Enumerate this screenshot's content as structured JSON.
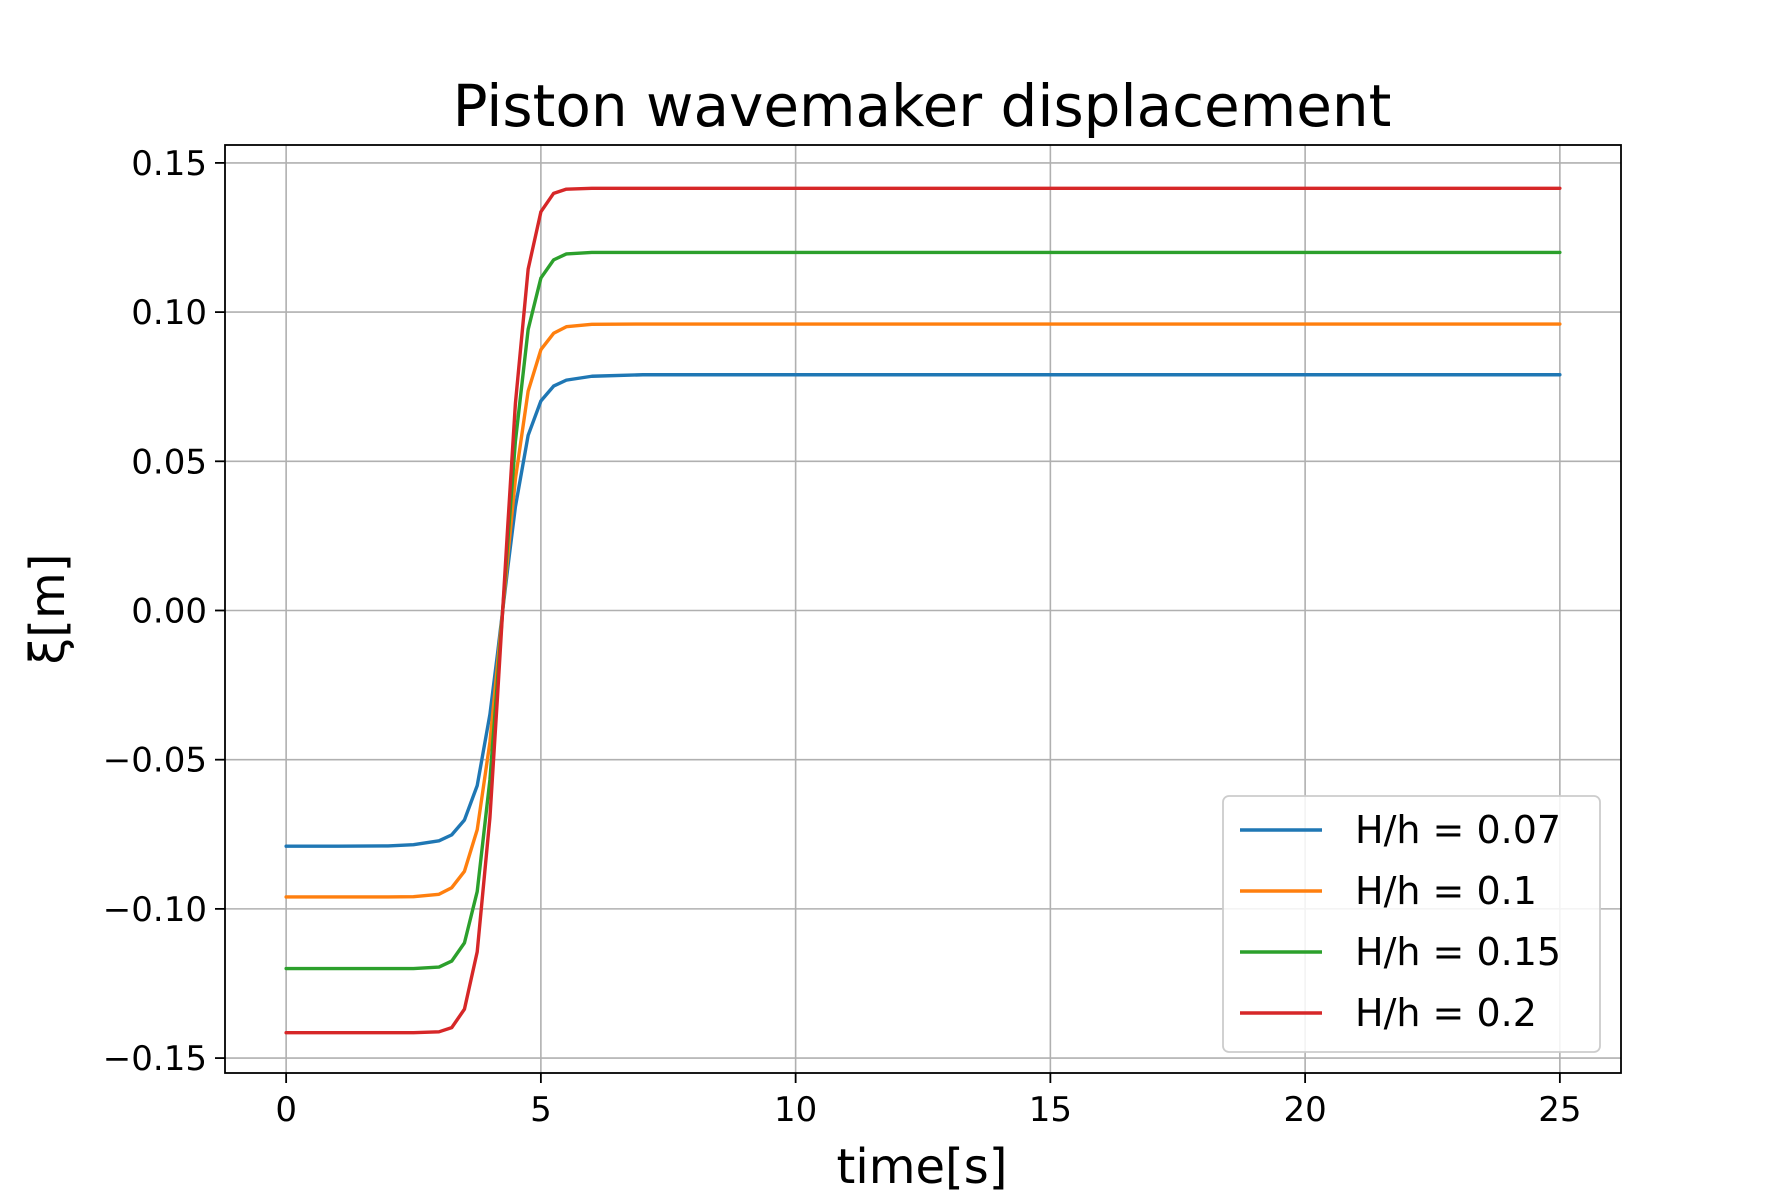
{
  "chart_data": {
    "type": "line",
    "title": "Piston wavemaker displacement",
    "xlabel": "time[s]",
    "ylabel": "ξ[m]",
    "xlim": [
      -1.2,
      26.2
    ],
    "ylim": [
      -0.155,
      0.156
    ],
    "xticks": [
      0,
      5,
      10,
      15,
      20,
      25
    ],
    "xtick_labels": [
      "0",
      "5",
      "10",
      "15",
      "20",
      "25"
    ],
    "yticks": [
      -0.15,
      -0.1,
      -0.05,
      0.0,
      0.05,
      0.1,
      0.15
    ],
    "ytick_labels": [
      "−0.15",
      "−0.10",
      "−0.05",
      "0.00",
      "0.05",
      "0.10",
      "0.15"
    ],
    "grid": true,
    "legend_position": "lower-right",
    "x": [
      0,
      1,
      2,
      2.5,
      3,
      3.25,
      3.5,
      3.75,
      4,
      4.15,
      4.25,
      4.35,
      4.5,
      4.75,
      5,
      5.25,
      5.5,
      6,
      7,
      10,
      15,
      20,
      25
    ],
    "series": [
      {
        "name": "H/h = 0.07",
        "color": "#1f77b4",
        "values": [
          -0.079,
          -0.079,
          -0.0789,
          -0.0785,
          -0.0772,
          -0.0752,
          -0.0702,
          -0.0587,
          -0.0348,
          -0.0143,
          0.0,
          0.0143,
          0.0348,
          0.0587,
          0.0702,
          0.0752,
          0.0772,
          0.0785,
          0.079,
          0.079,
          0.079,
          0.079,
          0.079
        ]
      },
      {
        "name": "H/h = 0.1",
        "color": "#ff7f0e",
        "values": [
          -0.096,
          -0.096,
          -0.096,
          -0.0959,
          -0.0951,
          -0.0929,
          -0.0874,
          -0.0735,
          -0.0441,
          -0.018,
          0.0,
          0.018,
          0.0441,
          0.0735,
          0.0874,
          0.0929,
          0.0951,
          0.0959,
          0.096,
          0.096,
          0.096,
          0.096,
          0.096
        ]
      },
      {
        "name": "H/h = 0.15",
        "color": "#2ca02c",
        "values": [
          -0.12,
          -0.12,
          -0.12,
          -0.12,
          -0.1195,
          -0.1175,
          -0.1114,
          -0.0942,
          -0.0567,
          -0.0231,
          0.0,
          0.0231,
          0.0567,
          0.0942,
          0.1114,
          0.1175,
          0.1195,
          0.12,
          0.12,
          0.12,
          0.12,
          0.12,
          0.12
        ]
      },
      {
        "name": "H/h = 0.2",
        "color": "#d62728",
        "values": [
          -0.1415,
          -0.1415,
          -0.1415,
          -0.1415,
          -0.1412,
          -0.1398,
          -0.1336,
          -0.1144,
          -0.0694,
          -0.0284,
          0.0,
          0.0284,
          0.0694,
          0.1144,
          0.1336,
          0.1398,
          0.1412,
          0.1415,
          0.1415,
          0.1415,
          0.1415,
          0.1415,
          0.1415
        ]
      }
    ]
  }
}
